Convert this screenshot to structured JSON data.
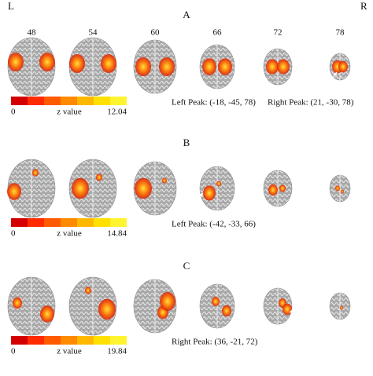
{
  "orientation": {
    "left": "L",
    "right": "R"
  },
  "slices": [
    "48",
    "54",
    "60",
    "66",
    "72",
    "78"
  ],
  "panels": [
    {
      "label": "A",
      "colorbar": {
        "min": "0",
        "label": "z value",
        "max": "12.04"
      },
      "peaks": [
        "Left Peak: (-18, -45, 78)",
        "Right Peak: (21, -30, 78)"
      ]
    },
    {
      "label": "B",
      "colorbar": {
        "min": "0",
        "label": "z value",
        "max": "14.84"
      },
      "peaks": [
        "Left Peak: (-42, -33, 66)"
      ]
    },
    {
      "label": "C",
      "colorbar": {
        "min": "0",
        "label": "z value",
        "max": "19.84"
      },
      "peaks": [
        "Right Peak: (36, -21, 72)"
      ]
    }
  ]
}
